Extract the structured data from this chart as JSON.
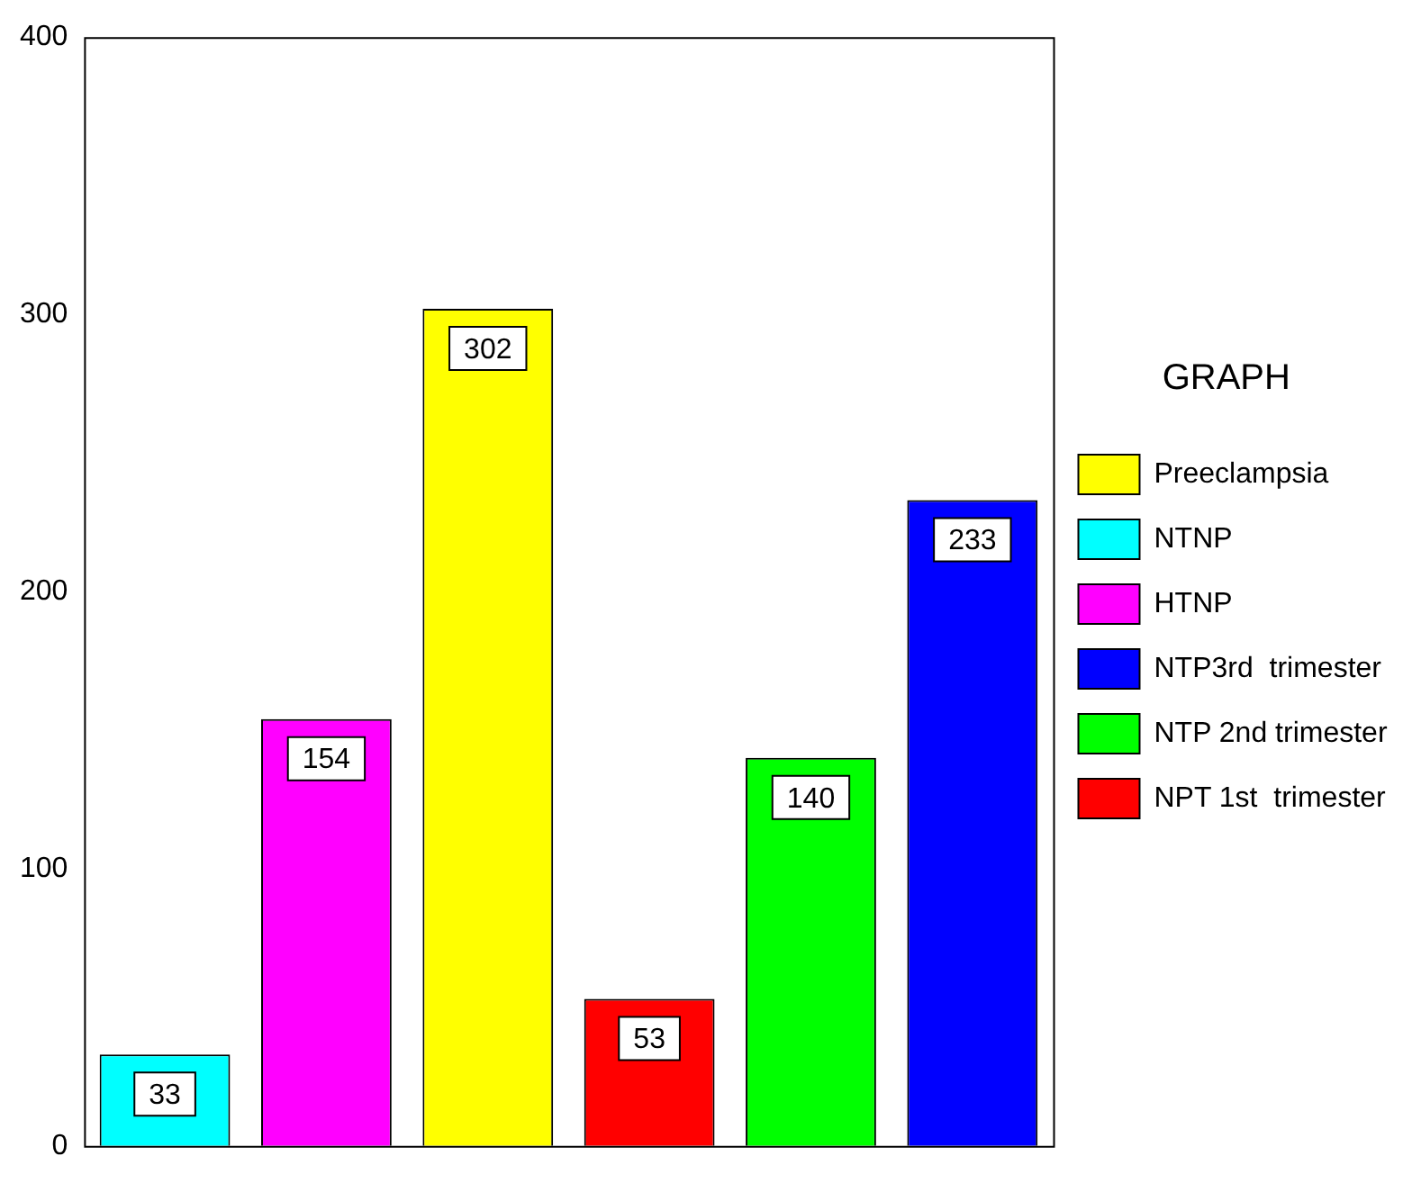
{
  "chart_data": {
    "type": "bar",
    "categories": [
      null,
      null,
      null,
      null,
      null,
      null
    ],
    "series": [
      {
        "name": "Preeclampsia",
        "color": "#ffff00",
        "values": [
          null,
          null,
          302,
          null,
          null,
          null
        ]
      },
      {
        "name": "NTNP",
        "color": "#00ffff",
        "values": [
          33,
          null,
          null,
          null,
          null,
          null
        ]
      },
      {
        "name": "HTNP",
        "color": "#ff00ff",
        "values": [
          null,
          154,
          null,
          null,
          null,
          null
        ]
      },
      {
        "name": "NTP3rd  trimester",
        "color": "#0000ff",
        "values": [
          null,
          null,
          null,
          null,
          null,
          233
        ]
      },
      {
        "name": "NTP 2nd trimester",
        "color": "#00ff00",
        "values": [
          null,
          null,
          null,
          null,
          140,
          null
        ]
      },
      {
        "name": "NPT 1st  trimester",
        "color": "#ff0000",
        "values": [
          null,
          null,
          null,
          53,
          null,
          null
        ]
      }
    ],
    "stacked": true,
    "ylim": [
      0,
      400
    ],
    "yticks": [
      0,
      100,
      200,
      300,
      400
    ],
    "grid": false,
    "legend": "right",
    "legend_title": "GRAPH",
    "data_labels": true
  }
}
